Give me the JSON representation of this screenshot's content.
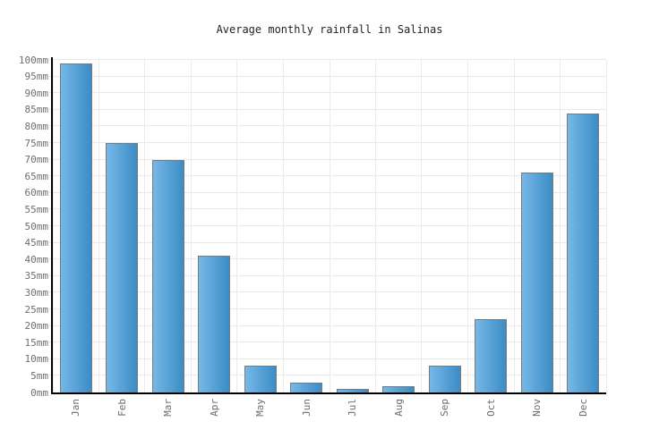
{
  "chart_data": {
    "type": "bar",
    "title": "Average monthly rainfall in Salinas",
    "categories": [
      "Jan",
      "Feb",
      "Mar",
      "Apr",
      "May",
      "Jun",
      "Jul",
      "Aug",
      "Sep",
      "Oct",
      "Nov",
      "Dec"
    ],
    "values": [
      99,
      75,
      70,
      41,
      8,
      3,
      1,
      2,
      8,
      22,
      66,
      84
    ],
    "unit": "mm",
    "xlabel": "",
    "ylabel": "",
    "ylim": [
      0,
      100
    ],
    "y_tick_step": 5,
    "y_tick_labels": [
      "0mm",
      "5mm",
      "10mm",
      "15mm",
      "20mm",
      "25mm",
      "30mm",
      "35mm",
      "40mm",
      "45mm",
      "50mm",
      "55mm",
      "60mm",
      "65mm",
      "70mm",
      "75mm",
      "80mm",
      "85mm",
      "90mm",
      "95mm",
      "100mm"
    ],
    "grid": true,
    "legend": false,
    "colors": {
      "bar_fill_left": "#76b8e7",
      "bar_fill_right": "#3b8cc6",
      "bar_border": "#7a7a7a",
      "hgridline": "#e8e8e8",
      "vgridline": "#ececec",
      "axis": "#000000",
      "tick_label": "#6e6e6e",
      "title": "#222222"
    }
  }
}
